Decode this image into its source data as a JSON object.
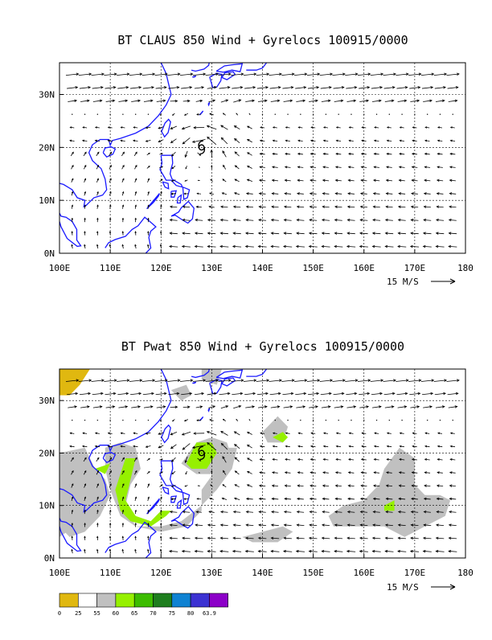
{
  "colors": {
    "coast": "#1a1aff",
    "arrow": "#000000",
    "grid": "#000000",
    "storm": "#000000"
  },
  "chart_data": [
    {
      "type": "vector-map",
      "title": "BT CLAUS 850 Wind + Gyrelocs 100915/0000",
      "x_ticks": [
        "100E",
        "110E",
        "120E",
        "130E",
        "140E",
        "150E",
        "160E",
        "170E",
        "180"
      ],
      "y_ticks": [
        "0N",
        "10N",
        "20N",
        "30N"
      ],
      "xlim": [
        100,
        180
      ],
      "ylim": [
        0,
        36
      ],
      "grid": true,
      "reference_vector": "15 M/S",
      "storm_symbol": {
        "lon": 128,
        "lat": 20
      },
      "shading": []
    },
    {
      "type": "vector-map",
      "title": "BT Pwat 850 Wind + Gyrelocs 100915/0000",
      "x_ticks": [
        "100E",
        "110E",
        "120E",
        "130E",
        "140E",
        "150E",
        "160E",
        "170E",
        "180"
      ],
      "y_ticks": [
        "0N",
        "10N",
        "20N",
        "30N"
      ],
      "xlim": [
        100,
        180
      ],
      "ylim": [
        0,
        36
      ],
      "grid": true,
      "reference_vector": "15 M/S",
      "storm_symbol": {
        "lon": 128,
        "lat": 20
      },
      "shading": [
        {
          "level": "55-60",
          "color": "#c0c0c0",
          "polygons": [
            [
              [
                100,
                20
              ],
              [
                105,
                21
              ],
              [
                107,
                17
              ],
              [
                109,
                15
              ],
              [
                110,
                12
              ],
              [
                108,
                8
              ],
              [
                105,
                5
              ],
              [
                102,
                4
              ],
              [
                100,
                6
              ]
            ],
            [
              [
                109,
                21
              ],
              [
                112,
                22
              ],
              [
                115,
                21
              ],
              [
                116,
                17
              ],
              [
                114,
                14
              ],
              [
                113,
                10
              ],
              [
                115,
                6
              ],
              [
                120,
                5
              ],
              [
                125,
                6
              ],
              [
                128,
                9
              ],
              [
                128,
                13
              ],
              [
                131,
                17
              ],
              [
                133,
                21
              ],
              [
                135,
                21
              ],
              [
                134,
                17
              ],
              [
                131,
                13
              ],
              [
                128,
                10
              ],
              [
                124,
                7
              ],
              [
                120,
                6
              ],
              [
                115,
                6
              ],
              [
                112,
                8
              ],
              [
                110,
                13
              ],
              [
                109,
                17
              ]
            ],
            [
              [
                124,
                18
              ],
              [
                127,
                22
              ],
              [
                130,
                23
              ],
              [
                133,
                22
              ],
              [
                134,
                19
              ],
              [
                131,
                16
              ],
              [
                127,
                16
              ]
            ],
            [
              [
                122,
                32
              ],
              [
                125,
                33
              ],
              [
                126,
                31
              ],
              [
                124,
                30
              ]
            ],
            [
              [
                128,
                36
              ],
              [
                132,
                36
              ],
              [
                131,
                33
              ],
              [
                128,
                34
              ]
            ],
            [
              [
                140,
                24
              ],
              [
                143,
                27
              ],
              [
                145,
                25
              ],
              [
                144,
                22
              ],
              [
                141,
                22
              ]
            ],
            [
              [
                136,
                4
              ],
              [
                140,
                5
              ],
              [
                144,
                6
              ],
              [
                146,
                5
              ],
              [
                143,
                3
              ],
              [
                138,
                3
              ]
            ],
            [
              [
                153,
                8
              ],
              [
                156,
                10
              ],
              [
                160,
                11
              ],
              [
                163,
                14
              ],
              [
                164,
                17
              ],
              [
                167,
                21
              ],
              [
                170,
                19
              ],
              [
                170,
                14
              ],
              [
                172,
                12
              ],
              [
                175,
                12
              ],
              [
                177,
                11
              ],
              [
                176,
                8
              ],
              [
                172,
                6
              ],
              [
                168,
                4
              ],
              [
                164,
                6
              ],
              [
                160,
                6
              ],
              [
                156,
                6
              ],
              [
                154,
                6
              ]
            ],
            [
              [
                100,
                10
              ],
              [
                103,
                12
              ],
              [
                103,
                6
              ],
              [
                100,
                4
              ]
            ]
          ]
        },
        {
          "level": "60-65",
          "color": "#96f000",
          "polygons": [
            [
              [
                111,
                13
              ],
              [
                113,
                19
              ],
              [
                115,
                19
              ],
              [
                114,
                15
              ],
              [
                113,
                11
              ],
              [
                115,
                8
              ],
              [
                118,
                7
              ],
              [
                120,
                9
              ],
              [
                122,
                9
              ],
              [
                121,
                8
              ],
              [
                118,
                6
              ],
              [
                114,
                7
              ],
              [
                112,
                9
              ]
            ],
            [
              [
                125,
                18
              ],
              [
                127,
                22
              ],
              [
                130,
                22
              ],
              [
                131,
                20
              ],
              [
                129,
                17
              ],
              [
                126,
                17
              ]
            ],
            [
              [
                142,
                23
              ],
              [
                144,
                24
              ],
              [
                145,
                23
              ],
              [
                144,
                22
              ]
            ],
            [
              [
                164,
                10
              ],
              [
                166,
                11
              ],
              [
                166,
                9
              ],
              [
                164,
                9
              ]
            ],
            [
              [
                107,
                17
              ],
              [
                110,
                18
              ],
              [
                109,
                16
              ]
            ]
          ]
        },
        {
          "level": "0-25",
          "color": "#e0b810",
          "polygons": [
            [
              [
                100,
                31
              ],
              [
                100,
                36
              ],
              [
                106,
                36
              ],
              [
                104,
                33
              ],
              [
                102,
                31
              ]
            ]
          ]
        }
      ],
      "legend": {
        "labels": [
          "0",
          "25",
          "55",
          "60",
          "65",
          "70",
          "75",
          "80",
          "63.9"
        ],
        "colors": [
          "#e0b810",
          "#ffffff",
          "#c0c0c0",
          "#96f000",
          "#3cbc00",
          "#1e7e1e",
          "#0f82d2",
          "#3c32d2",
          "#8c00c8"
        ]
      }
    }
  ]
}
